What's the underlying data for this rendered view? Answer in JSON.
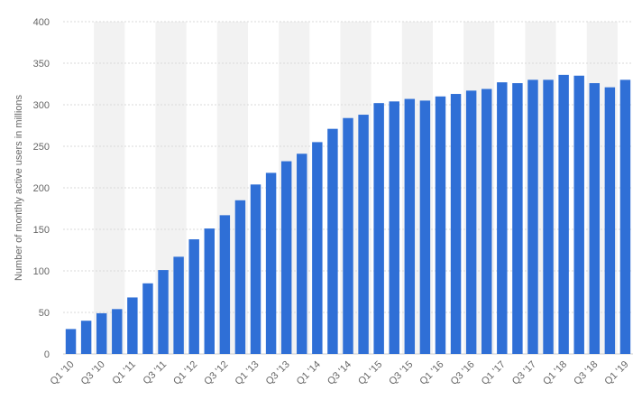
{
  "chart_data": {
    "type": "bar",
    "title": "",
    "xlabel": "",
    "ylabel": "Number of monthly active users in millions",
    "ylim": [
      0,
      400
    ],
    "yticks": [
      0,
      50,
      100,
      150,
      200,
      250,
      300,
      350,
      400
    ],
    "grid": true,
    "legend": "none",
    "bar_color": "#2f6fd6",
    "categories": [
      "Q1 '10",
      "Q2 '10",
      "Q3 '10",
      "Q4 '10",
      "Q1 '11",
      "Q2 '11",
      "Q3 '11",
      "Q4 '11",
      "Q1 '12",
      "Q2 '12",
      "Q3 '12",
      "Q4 '12",
      "Q1 '13",
      "Q2 '13",
      "Q3 '13",
      "Q4 '13",
      "Q1 '14",
      "Q2 '14",
      "Q3 '14",
      "Q4 '14",
      "Q1 '15",
      "Q2 '15",
      "Q3 '15",
      "Q4 '15",
      "Q1 '16",
      "Q2 '16",
      "Q3 '16",
      "Q4 '16",
      "Q1 '17",
      "Q2 '17",
      "Q3 '17",
      "Q4 '17",
      "Q1 '18",
      "Q2 '18",
      "Q3 '18",
      "Q4 '18",
      "Q1 '19"
    ],
    "tick_labels_shown": [
      "Q1 '10",
      "Q3 '10",
      "Q1 '11",
      "Q3 '11",
      "Q1 '12",
      "Q3 '12",
      "Q1 '13",
      "Q3 '13",
      "Q1 '14",
      "Q3 '14",
      "Q1 '15",
      "Q3 '15",
      "Q1 '16",
      "Q3 '16",
      "Q1 '17",
      "Q3 '17",
      "Q1 '18",
      "Q3 '18",
      "Q1 '19"
    ],
    "values": [
      30,
      40,
      49,
      54,
      68,
      85,
      101,
      117,
      138,
      151,
      167,
      185,
      204,
      218,
      232,
      241,
      255,
      271,
      284,
      288,
      302,
      304,
      307,
      305,
      310,
      313,
      317,
      319,
      327,
      326,
      330,
      330,
      336,
      335,
      326,
      321,
      330
    ]
  }
}
